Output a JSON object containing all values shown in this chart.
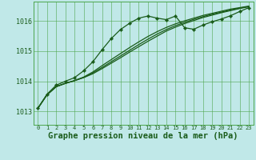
{
  "background_color": "#c0e8e8",
  "plot_bg_color": "#c0e8e8",
  "grid_color": "#4da64d",
  "line_color": "#1a5c1a",
  "marker_color": "#1a5c1a",
  "xlabel": "Graphe pression niveau de la mer (hPa)",
  "xlabel_fontsize": 7.5,
  "ylabel_values": [
    1013,
    1014,
    1015,
    1016
  ],
  "xlim": [
    -0.5,
    23.5
  ],
  "ylim": [
    1012.55,
    1016.65
  ],
  "xticks": [
    0,
    1,
    2,
    3,
    4,
    5,
    6,
    7,
    8,
    9,
    10,
    11,
    12,
    13,
    14,
    15,
    16,
    17,
    18,
    19,
    20,
    21,
    22,
    23
  ],
  "series_straight": [
    [
      1013.1,
      1013.55,
      1013.82,
      1013.93,
      1014.02,
      1014.12,
      1014.25,
      1014.42,
      1014.6,
      1014.78,
      1014.97,
      1015.15,
      1015.33,
      1015.5,
      1015.67,
      1015.8,
      1015.92,
      1016.02,
      1016.12,
      1016.2,
      1016.28,
      1016.35,
      1016.42,
      1016.48
    ],
    [
      1013.1,
      1013.55,
      1013.82,
      1013.93,
      1014.02,
      1014.13,
      1014.28,
      1014.46,
      1014.65,
      1014.84,
      1015.03,
      1015.22,
      1015.4,
      1015.57,
      1015.72,
      1015.85,
      1015.96,
      1016.06,
      1016.15,
      1016.23,
      1016.3,
      1016.37,
      1016.43,
      1016.49
    ],
    [
      1013.1,
      1013.55,
      1013.82,
      1013.93,
      1014.02,
      1014.14,
      1014.31,
      1014.52,
      1014.72,
      1014.92,
      1015.12,
      1015.31,
      1015.49,
      1015.65,
      1015.79,
      1015.91,
      1016.01,
      1016.1,
      1016.19,
      1016.26,
      1016.33,
      1016.4,
      1016.45,
      1016.5
    ]
  ],
  "series_wavy": [
    1013.1,
    1013.57,
    1013.87,
    1014.0,
    1014.12,
    1014.35,
    1014.65,
    1015.05,
    1015.42,
    1015.72,
    1015.93,
    1016.1,
    1016.17,
    1016.1,
    1016.05,
    1016.17,
    1015.78,
    1015.73,
    1015.87,
    1015.98,
    1016.07,
    1016.18,
    1016.32,
    1016.45
  ],
  "font_family": "monospace"
}
